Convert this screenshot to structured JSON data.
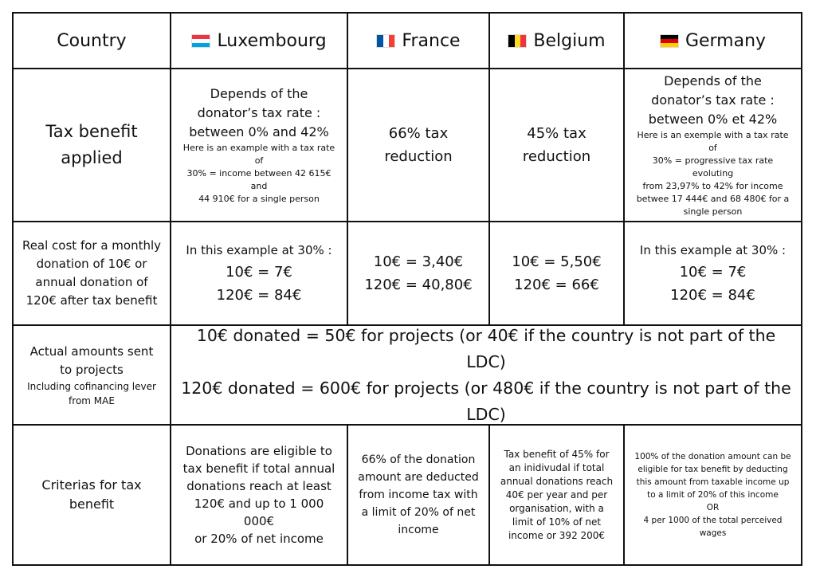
{
  "header": {
    "country": "Country",
    "countries": [
      {
        "name": "Luxembourg",
        "flag_icon": "luxembourg-flag-icon",
        "colors": [
          "#ef3340",
          "#ffffff",
          "#00a3e0"
        ]
      },
      {
        "name": "France",
        "flag_icon": "france-flag-icon",
        "colors": [
          "#0055a4",
          "#ffffff",
          "#ef4135"
        ]
      },
      {
        "name": "Belgium",
        "flag_icon": "belgium-flag-icon",
        "colors": [
          "#000000",
          "#fdda24",
          "#ef3340"
        ]
      },
      {
        "name": "Germany",
        "flag_icon": "germany-flag-icon",
        "colors": [
          "#000000",
          "#dd0000",
          "#ffce00"
        ]
      }
    ]
  },
  "tax_benefit": {
    "label_line1": "Tax benefit",
    "label_line2": "applied",
    "luxembourg": {
      "lines": [
        "Depends of the",
        "donator’s tax rate :",
        "between 0% and 42%"
      ],
      "note": [
        "Here is an example with a tax rate of",
        "30% = income between 42 615€ and",
        "44 910€ for a single person"
      ]
    },
    "france": [
      "66% tax",
      "reduction"
    ],
    "belgium": [
      "45% tax",
      "reduction"
    ],
    "germany": {
      "lines": [
        "Depends of the",
        "donator’s tax rate :",
        "between 0% et 42%"
      ],
      "note": [
        "Here is an exemple with a tax rate of",
        "30% = progressive tax rate evoluting",
        "from 23,97% to 42% for income",
        "betwee 17 444€ and 68 480€ for a",
        "single person"
      ]
    }
  },
  "real_cost": {
    "label": [
      "Real cost for a monthly",
      "donation of 10€ or",
      "annual donation of",
      "120€ after tax benefit"
    ],
    "luxembourg": {
      "intro": "In this example at 30% :",
      "lines": [
        "10€ = 7€",
        "120€ = 84€"
      ]
    },
    "france": [
      "10€ = 3,40€",
      "120€ = 40,80€"
    ],
    "belgium": [
      "10€ = 5,50€",
      "120€ = 66€"
    ],
    "germany": {
      "intro": "In this example at 30% :",
      "lines": [
        "10€ = 7€",
        "120€ = 84€"
      ]
    }
  },
  "actual_amounts": {
    "label": [
      "Actual amounts sent",
      "to projects"
    ],
    "label_note": [
      "Including cofinancing lever",
      "from MAE"
    ],
    "lines": [
      "10€ donated = 50€ for projects (or 40€ if the country is not part of the LDC)",
      "120€ donated = 600€ for projects (or 480€ if the country is not part of the LDC)"
    ]
  },
  "criterias": {
    "label": [
      "Criterias for tax",
      "benefit"
    ],
    "luxembourg": [
      "Donations are eligible to",
      "tax benefit if total annual",
      "donations reach at least",
      "120€ and up to 1 000 000€",
      "or 20% of net income"
    ],
    "france": [
      "66% of the donation",
      "amount are deducted",
      "from income tax with",
      "a limit of 20% of net",
      "income"
    ],
    "belgium": [
      "Tax benefit of 45% for",
      "an inidivudal if total",
      "annual donations reach",
      "40€ per year and per",
      "organisation, with a",
      "limit of 10% of net",
      "income or 392 200€"
    ],
    "germany": [
      "100% of the donation amount can be",
      "eligible for tax benefit by deducting",
      "this amount from taxable income up",
      "to a limit of  20% of this income",
      "OR",
      "4  per 1000 of the total perceived",
      "wages"
    ]
  }
}
